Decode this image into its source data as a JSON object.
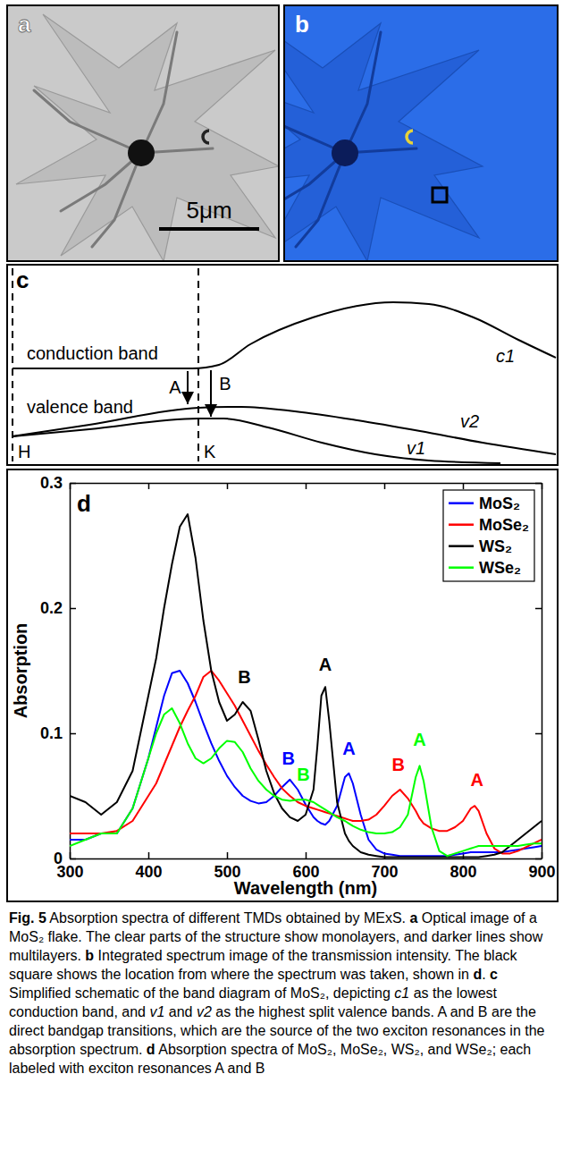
{
  "panels": {
    "a": {
      "label": "a",
      "scale_bar": "5μm"
    },
    "b": {
      "label": "b"
    },
    "c": {
      "label": "c",
      "conduction_band": "conduction band",
      "valence_band": "valence band",
      "transition_a": "A",
      "transition_b": "B",
      "point_h": "H",
      "point_k": "K",
      "c1": "c1",
      "v1": "v1",
      "v2": "v2"
    }
  },
  "chart_data": {
    "type": "line",
    "panel_label": "d",
    "xlabel": "Wavelength (nm)",
    "ylabel": "Absorption",
    "x": [
      300,
      320,
      340,
      360,
      380,
      400,
      410,
      420,
      430,
      440,
      450,
      460,
      470,
      480,
      490,
      500,
      510,
      520,
      530,
      540,
      550,
      560,
      570,
      580,
      590,
      600,
      610,
      615,
      620,
      625,
      630,
      640,
      650,
      655,
      660,
      670,
      680,
      690,
      700,
      710,
      720,
      730,
      740,
      745,
      750,
      760,
      770,
      780,
      790,
      800,
      810,
      815,
      820,
      830,
      840,
      850,
      860,
      870,
      880,
      890,
      900
    ],
    "xlim": [
      300,
      900
    ],
    "xticks": [
      300,
      400,
      500,
      600,
      700,
      800,
      900
    ],
    "ylim": [
      0,
      0.3
    ],
    "yticks": [
      0,
      0.1,
      0.2,
      0.3
    ],
    "grid": false,
    "legend": "top-right",
    "series": [
      {
        "name": "MoS₂",
        "color": "#0000ff",
        "values": [
          0.015,
          0.015,
          0.02,
          0.02,
          0.04,
          0.08,
          0.105,
          0.13,
          0.148,
          0.15,
          0.14,
          0.125,
          0.108,
          0.092,
          0.078,
          0.066,
          0.057,
          0.05,
          0.046,
          0.044,
          0.045,
          0.05,
          0.057,
          0.063,
          0.055,
          0.043,
          0.033,
          0.03,
          0.028,
          0.027,
          0.03,
          0.042,
          0.065,
          0.068,
          0.06,
          0.035,
          0.015,
          0.007,
          0.004,
          0.003,
          0.002,
          0.002,
          0.002,
          0.002,
          0.002,
          0.002,
          0.002,
          0.002,
          0.003,
          0.004,
          0.005,
          0.005,
          0.005,
          0.005,
          0.005,
          0.005,
          0.006,
          0.007,
          0.008,
          0.009,
          0.01
        ],
        "annotations": [
          {
            "text": "B",
            "x": 578,
            "y": 0.075
          },
          {
            "text": "A",
            "x": 655,
            "y": 0.083
          }
        ]
      },
      {
        "name": "MoSe₂",
        "color": "#ff0000",
        "values": [
          0.02,
          0.02,
          0.02,
          0.022,
          0.03,
          0.05,
          0.06,
          0.075,
          0.09,
          0.105,
          0.118,
          0.13,
          0.145,
          0.15,
          0.142,
          0.132,
          0.122,
          0.11,
          0.098,
          0.086,
          0.075,
          0.065,
          0.056,
          0.05,
          0.045,
          0.042,
          0.04,
          0.039,
          0.038,
          0.037,
          0.036,
          0.034,
          0.032,
          0.031,
          0.03,
          0.03,
          0.031,
          0.035,
          0.042,
          0.05,
          0.055,
          0.048,
          0.038,
          0.032,
          0.028,
          0.024,
          0.022,
          0.022,
          0.025,
          0.03,
          0.04,
          0.042,
          0.038,
          0.02,
          0.008,
          0.004,
          0.004,
          0.006,
          0.009,
          0.012,
          0.015
        ],
        "annotations": [
          {
            "text": "B",
            "x": 718,
            "y": 0.07
          },
          {
            "text": "A",
            "x": 818,
            "y": 0.058
          }
        ]
      },
      {
        "name": "WS₂",
        "color": "#000000",
        "values": [
          0.05,
          0.045,
          0.035,
          0.045,
          0.07,
          0.13,
          0.16,
          0.2,
          0.235,
          0.265,
          0.275,
          0.24,
          0.19,
          0.15,
          0.125,
          0.11,
          0.115,
          0.125,
          0.118,
          0.095,
          0.07,
          0.052,
          0.04,
          0.033,
          0.03,
          0.035,
          0.055,
          0.09,
          0.13,
          0.137,
          0.11,
          0.045,
          0.02,
          0.014,
          0.01,
          0.005,
          0.003,
          0.002,
          0.001,
          0.001,
          0.001,
          0.001,
          0.001,
          0.001,
          0.001,
          0.001,
          0.001,
          0.001,
          0.001,
          0.001,
          0.001,
          0.001,
          0.001,
          0.002,
          0.003,
          0.005,
          0.01,
          0.015,
          0.02,
          0.025,
          0.03
        ],
        "annotations": [
          {
            "text": "B",
            "x": 522,
            "y": 0.14
          },
          {
            "text": "A",
            "x": 625,
            "y": 0.15
          }
        ]
      },
      {
        "name": "WSe₂",
        "color": "#00ff00",
        "values": [
          0.01,
          0.015,
          0.02,
          0.02,
          0.04,
          0.08,
          0.1,
          0.115,
          0.12,
          0.108,
          0.092,
          0.08,
          0.076,
          0.08,
          0.088,
          0.094,
          0.093,
          0.085,
          0.072,
          0.062,
          0.055,
          0.05,
          0.047,
          0.046,
          0.047,
          0.047,
          0.045,
          0.043,
          0.041,
          0.039,
          0.037,
          0.033,
          0.03,
          0.028,
          0.026,
          0.023,
          0.021,
          0.02,
          0.02,
          0.021,
          0.025,
          0.035,
          0.065,
          0.074,
          0.062,
          0.025,
          0.006,
          0.002,
          0.004,
          0.006,
          0.008,
          0.009,
          0.01,
          0.01,
          0.01,
          0.01,
          0.01,
          0.01,
          0.011,
          0.012,
          0.012
        ],
        "annotations": [
          {
            "text": "B",
            "x": 597,
            "y": 0.062
          },
          {
            "text": "A",
            "x": 745,
            "y": 0.09
          }
        ]
      }
    ]
  },
  "caption": [
    {
      "text": "Fig. 5",
      "style": "bold"
    },
    {
      "text": "  Absorption spectra of different TMDs obtained by MExS. "
    },
    {
      "text": "a",
      "style": "bold"
    },
    {
      "text": " Optical image of a MoS₂ flake. The clear parts of the structure show monolayers, and darker lines show multilayers. "
    },
    {
      "text": "b",
      "style": "bold"
    },
    {
      "text": " Integrated spectrum image of the transmission intensity. The black square shows the location from where the spectrum was taken, shown in "
    },
    {
      "text": "d",
      "style": "bold"
    },
    {
      "text": ". "
    },
    {
      "text": "c",
      "style": "bold"
    },
    {
      "text": " Simplified schematic of the band diagram of MoS₂, depicting "
    },
    {
      "text": "c1",
      "style": "italic"
    },
    {
      "text": " as the lowest conduction band, and "
    },
    {
      "text": "v1",
      "style": "italic"
    },
    {
      "text": " and "
    },
    {
      "text": "v2",
      "style": "italic"
    },
    {
      "text": " as the highest split valence bands. A and B are the direct bandgap transitions, which are the source of the two exciton resonances in the absorption spectrum. "
    },
    {
      "text": "d",
      "style": "bold"
    },
    {
      "text": " Absorption spectra of MoS₂, MoSe₂, WS₂, and WSe₂; each labeled with exciton resonances A and B"
    }
  ]
}
